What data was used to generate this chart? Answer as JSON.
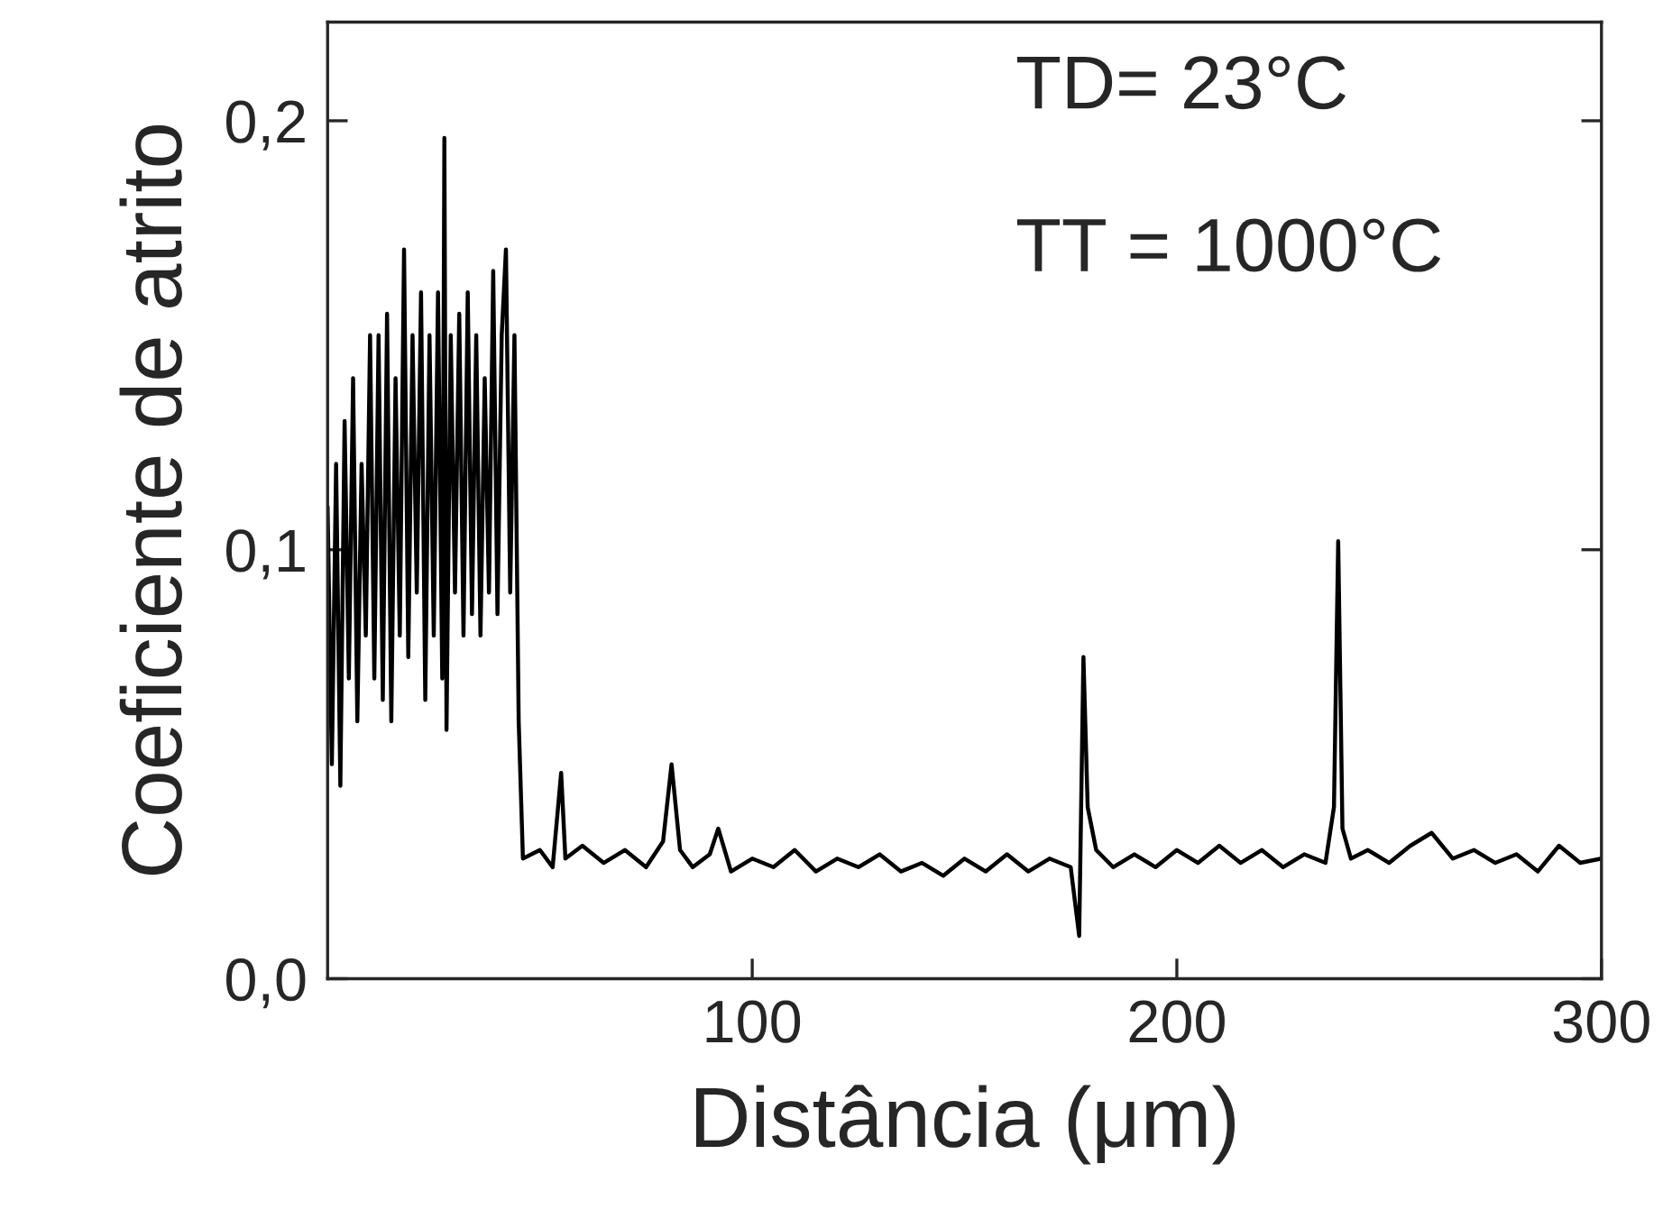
{
  "chart_data": {
    "type": "line",
    "xlabel": "Distância (μm)",
    "ylabel": "Coeficiente de atrito",
    "annotations": [
      "TD= 23°C",
      "TT = 1000°C"
    ],
    "xlim": [
      0,
      300
    ],
    "xticks": [
      100,
      200,
      300
    ],
    "ylim": [
      0,
      0.223
    ],
    "yticks": [
      {
        "value": 0,
        "label": "0,0"
      },
      {
        "value": 0.1,
        "label": "0,1"
      },
      {
        "value": 0.2,
        "label": "0,2"
      }
    ],
    "grid": false,
    "legend": false,
    "marker": "none",
    "line_style": "solid",
    "series": [
      {
        "color": "#000000",
        "x": [
          0,
          1,
          2,
          3,
          4,
          5,
          6,
          7,
          8,
          9,
          10,
          11,
          12,
          13,
          14,
          15,
          16,
          17,
          18,
          19,
          20,
          21,
          22,
          23,
          24,
          25,
          26,
          27,
          27.5,
          28,
          29,
          30,
          31,
          32,
          33,
          34,
          35,
          36,
          37,
          38,
          39,
          40,
          41,
          42,
          43,
          44,
          45,
          46,
          50,
          53,
          55,
          56,
          60,
          65,
          70,
          75,
          79,
          81,
          83,
          86,
          90,
          92,
          95,
          100,
          105,
          110,
          115,
          120,
          125,
          130,
          135,
          140,
          145,
          150,
          155,
          160,
          165,
          170,
          175,
          177,
          178,
          179,
          181,
          185,
          190,
          195,
          200,
          205,
          210,
          215,
          220,
          225,
          230,
          235,
          237,
          238,
          239,
          241,
          245,
          250,
          255,
          260,
          265,
          270,
          275,
          280,
          285,
          290,
          295,
          300
        ],
        "values": [
          0.11,
          0.05,
          0.12,
          0.045,
          0.13,
          0.07,
          0.14,
          0.06,
          0.12,
          0.08,
          0.15,
          0.07,
          0.15,
          0.065,
          0.155,
          0.06,
          0.14,
          0.08,
          0.17,
          0.075,
          0.15,
          0.09,
          0.16,
          0.065,
          0.15,
          0.08,
          0.16,
          0.07,
          0.196,
          0.058,
          0.15,
          0.09,
          0.155,
          0.08,
          0.16,
          0.085,
          0.15,
          0.08,
          0.14,
          0.09,
          0.165,
          0.085,
          0.15,
          0.17,
          0.09,
          0.15,
          0.06,
          0.028,
          0.03,
          0.026,
          0.048,
          0.028,
          0.031,
          0.027,
          0.03,
          0.026,
          0.032,
          0.05,
          0.03,
          0.026,
          0.029,
          0.035,
          0.025,
          0.028,
          0.026,
          0.03,
          0.025,
          0.028,
          0.026,
          0.029,
          0.025,
          0.027,
          0.024,
          0.028,
          0.025,
          0.029,
          0.025,
          0.028,
          0.026,
          0.01,
          0.075,
          0.04,
          0.03,
          0.026,
          0.029,
          0.026,
          0.03,
          0.027,
          0.031,
          0.027,
          0.03,
          0.026,
          0.029,
          0.027,
          0.04,
          0.102,
          0.035,
          0.028,
          0.03,
          0.027,
          0.031,
          0.034,
          0.028,
          0.03,
          0.027,
          0.029,
          0.025,
          0.031,
          0.027,
          0.028
        ]
      }
    ]
  }
}
